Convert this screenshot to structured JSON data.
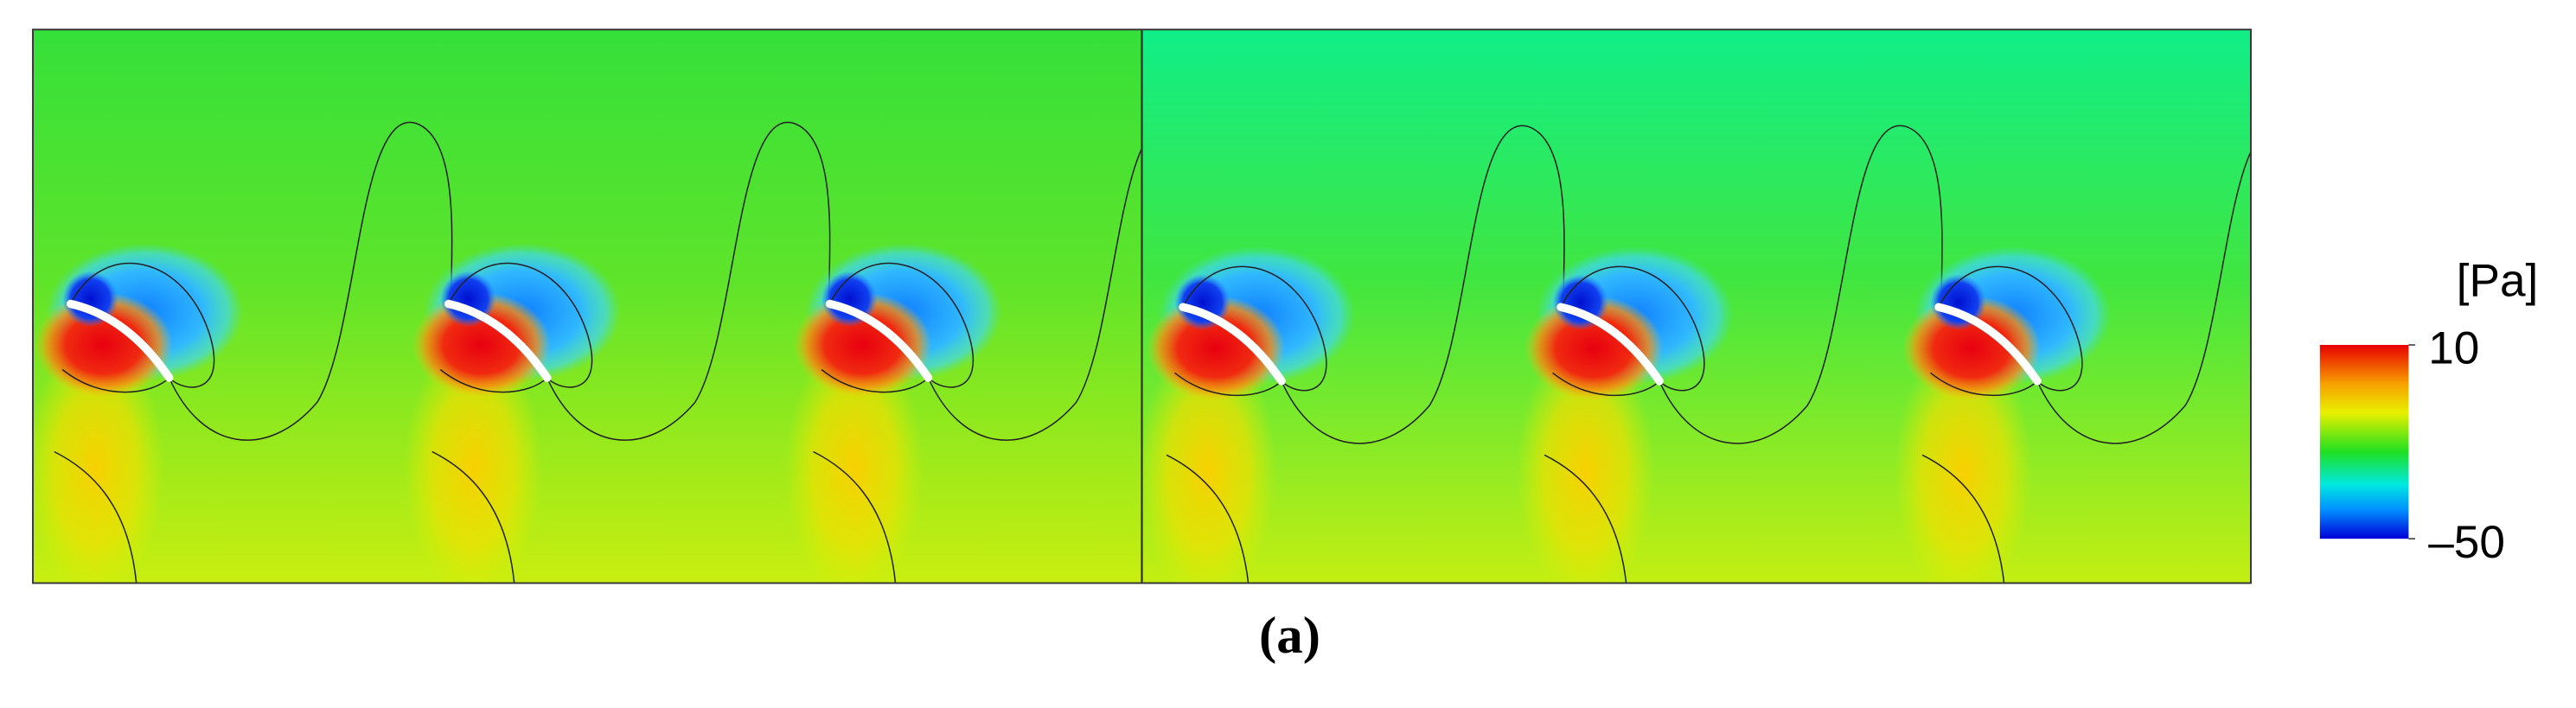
{
  "colorbar": {
    "unit": "[Pa]",
    "ticks": [
      10,
      {
        "value": -50,
        "label": "–50"
      }
    ]
  },
  "caption": "(a)"
}
